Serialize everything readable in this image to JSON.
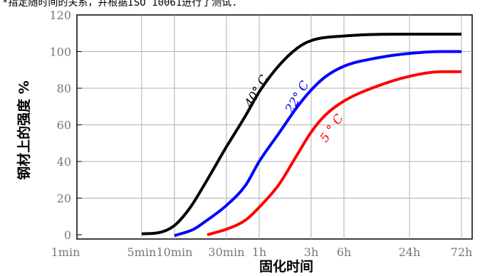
{
  "page": {
    "top_note": "*指定随时间的关系，并根据ISO 10061进行了测试."
  },
  "chart_data": {
    "type": "line",
    "title": "",
    "xlabel": "固化时间",
    "ylabel": "钢材上的强度 %",
    "x_scale": "log",
    "x_unit": "minutes",
    "xlim": [
      1,
      4320
    ],
    "ylim": [
      0,
      120
    ],
    "y_ticks": [
      0,
      20,
      40,
      60,
      80,
      100,
      120
    ],
    "x_ticks": [
      {
        "label": "1min",
        "value": 1
      },
      {
        "label": "5min",
        "value": 5
      },
      {
        "label": "10min",
        "value": 10
      },
      {
        "label": "30min",
        "value": 30
      },
      {
        "label": "1h",
        "value": 60
      },
      {
        "label": "3h",
        "value": 180
      },
      {
        "label": "6h",
        "value": 360
      },
      {
        "label": "24h",
        "value": 1440
      },
      {
        "label": "72h",
        "value": 4320
      }
    ],
    "grid": true,
    "series": [
      {
        "name": "40° C",
        "color": "#000000",
        "points": [
          [
            5,
            0.5
          ],
          [
            7,
            1
          ],
          [
            10,
            5
          ],
          [
            14,
            15
          ],
          [
            20,
            30
          ],
          [
            30,
            48
          ],
          [
            45,
            65
          ],
          [
            60,
            78
          ],
          [
            90,
            92
          ],
          [
            135,
            102
          ],
          [
            180,
            106
          ],
          [
            360,
            108.5
          ],
          [
            1440,
            109.5
          ],
          [
            4320,
            109.5
          ]
        ]
      },
      {
        "name": "22° C",
        "color": "#0000ff",
        "points": [
          [
            10,
            -0.5
          ],
          [
            15,
            3
          ],
          [
            20,
            8
          ],
          [
            30,
            16
          ],
          [
            45,
            27
          ],
          [
            60,
            40
          ],
          [
            90,
            55
          ],
          [
            135,
            70
          ],
          [
            180,
            79
          ],
          [
            240,
            86
          ],
          [
            360,
            92
          ],
          [
            720,
            96.5
          ],
          [
            1440,
            99
          ],
          [
            2880,
            100
          ],
          [
            4320,
            100
          ]
        ]
      },
      {
        "name": "5 ° C",
        "color": "#ff0000",
        "points": [
          [
            20,
            0
          ],
          [
            30,
            3
          ],
          [
            45,
            8
          ],
          [
            60,
            15
          ],
          [
            90,
            27
          ],
          [
            135,
            44
          ],
          [
            180,
            56
          ],
          [
            240,
            65
          ],
          [
            360,
            73
          ],
          [
            720,
            81
          ],
          [
            1440,
            86.5
          ],
          [
            2880,
            89
          ],
          [
            4320,
            89
          ]
        ]
      }
    ]
  }
}
